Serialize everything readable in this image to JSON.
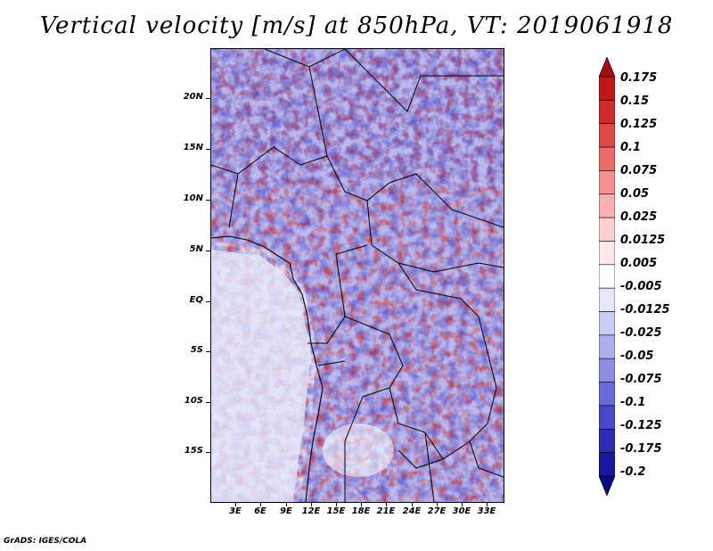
{
  "title": "Vertical velocity [m/s] at 850hPa, VT: 2019061918",
  "credit": "GrADS: IGES/COLA",
  "map": {
    "region": "Central Africa",
    "lat_labels": [
      "20N",
      "15N",
      "10N",
      "5N",
      "EQ",
      "5S",
      "10S",
      "15S"
    ],
    "lon_labels": [
      "3E",
      "6E",
      "9E",
      "12E",
      "15E",
      "18E",
      "21E",
      "24E",
      "27E",
      "30E",
      "33E"
    ]
  },
  "colorbar": {
    "levels": [
      "0.175",
      "0.15",
      "0.125",
      "0.1",
      "0.075",
      "0.05",
      "0.025",
      "0.0125",
      "0.005",
      "-0.005",
      "-0.0125",
      "-0.025",
      "-0.05",
      "-0.075",
      "-0.1",
      "-0.125",
      "-0.175",
      "-0.2"
    ],
    "colors": [
      "#a01010",
      "#c01818",
      "#d02a2a",
      "#e04848",
      "#ec6a6a",
      "#f49090",
      "#f8b0b0",
      "#fbd0d0",
      "#fde8e8",
      "#ffffff",
      "#e6e6fb",
      "#cbcbf5",
      "#acacee",
      "#8c8ce4",
      "#6a6ad8",
      "#4848c8",
      "#2c2cb4",
      "#18189c",
      "#0a0a80"
    ]
  }
}
